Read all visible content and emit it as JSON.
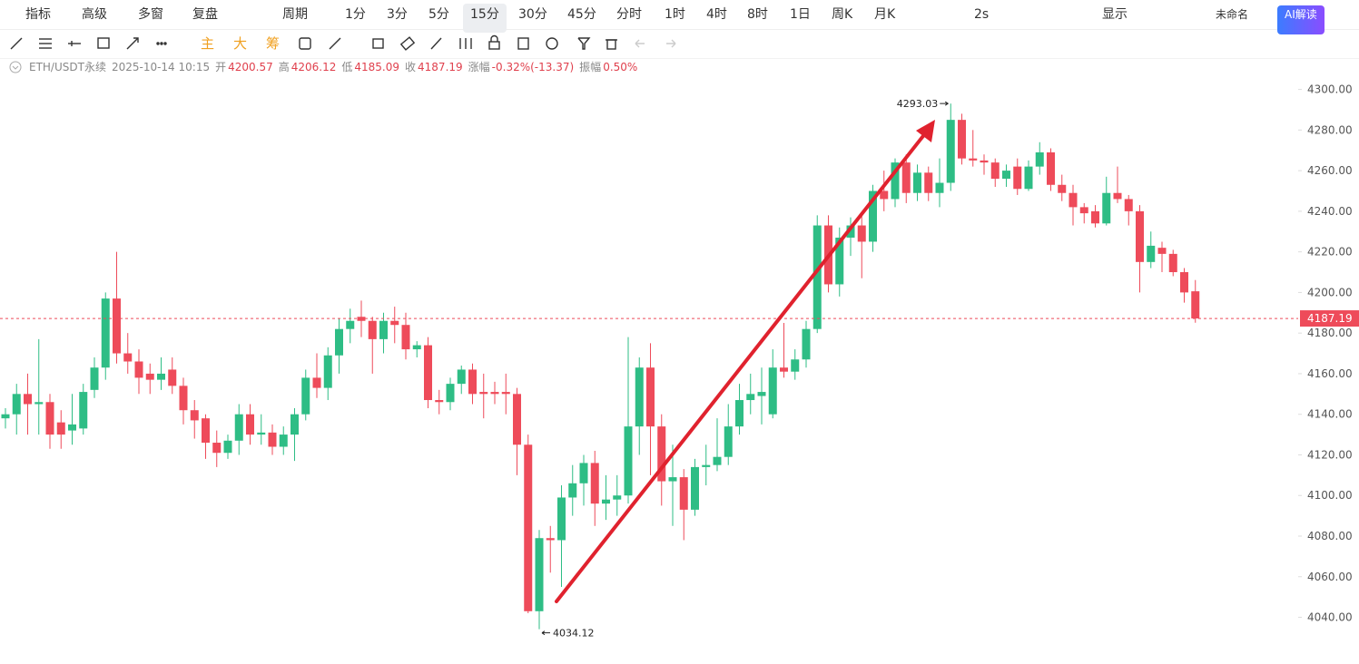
{
  "toolbar": {
    "left": [
      "指标",
      "高级",
      "多窗",
      "复盘",
      "周期"
    ],
    "periods": [
      "1分",
      "3分",
      "5分",
      "15分",
      "30分",
      "45分",
      "分时",
      "1时",
      "4时",
      "8时",
      "1日",
      "周K",
      "月K"
    ],
    "selected_period": "15分",
    "right": [
      "2s",
      "显示",
      "未命名",
      "AI解读"
    ]
  },
  "drawing_tools": {
    "labels": [
      "主",
      "大",
      "筹"
    ]
  },
  "info": {
    "symbol": "ETH/USDT永续",
    "time": "2025-10-14 10:15",
    "items": [
      {
        "label": "开",
        "value": "4200.57"
      },
      {
        "label": "高",
        "value": "4206.12"
      },
      {
        "label": "低",
        "value": "4185.09"
      },
      {
        "label": "收",
        "value": "4187.19"
      },
      {
        "label": "涨幅",
        "value": "-0.32%(-13.37)"
      },
      {
        "label": "振幅",
        "value": "0.50%"
      }
    ]
  },
  "chart_data": {
    "type": "candlestick",
    "up_color": "#2ebd85",
    "down_color": "#ee4b5a",
    "ylim": [
      4017,
      4315
    ],
    "yticks": [
      {
        "value": 4040,
        "label": "4040.00"
      },
      {
        "value": 4060,
        "label": "4060.00"
      },
      {
        "value": 4080,
        "label": "4080.00"
      },
      {
        "value": 4100,
        "label": "4100.00"
      },
      {
        "value": 4120,
        "label": "4120.00"
      },
      {
        "value": 4140,
        "label": "4140.00"
      },
      {
        "value": 4160,
        "label": "4160.00"
      },
      {
        "value": 4180,
        "label": "4180.00"
      },
      {
        "value": 4200,
        "label": "4200.00"
      },
      {
        "value": 4220,
        "label": "4220.00"
      },
      {
        "value": 4240,
        "label": "4240.00"
      },
      {
        "value": 4260,
        "label": "4260.00"
      },
      {
        "value": 4280,
        "label": "4280.00"
      },
      {
        "value": 4300,
        "label": "4300.00"
      }
    ],
    "open": [
      4138,
      4140,
      4150,
      4145,
      4146,
      4136,
      4132,
      4133,
      4152,
      4163,
      4197,
      4170,
      4166,
      4160,
      4157,
      4162,
      4154,
      4142,
      4138,
      4126,
      4121,
      4127,
      4140,
      4130,
      4131,
      4124,
      4130,
      4140,
      4158,
      4153,
      4169,
      4182,
      4188,
      4186,
      4177,
      4186,
      4184,
      4172,
      4174,
      4147,
      4146,
      4155,
      4162,
      4151,
      4151,
      4151,
      4150,
      4125,
      4043,
      4079,
      4078,
      4099,
      4106,
      4116,
      4096,
      4098,
      4100,
      4134,
      4163,
      4134,
      4107,
      4109,
      4093,
      4114,
      4115,
      4119,
      4134,
      4147,
      4149,
      4140,
      4163,
      4161,
      4167,
      4182,
      4233,
      4204,
      4227,
      4233,
      4225,
      4250,
      4246,
      4264,
      4249,
      4259,
      4249,
      4254,
      4285,
      4266,
      4265,
      4264,
      4256,
      4262,
      4251,
      4262,
      4269,
      4253,
      4249,
      4242,
      4240,
      4234,
      4249,
      4246,
      4240,
      4215,
      4222,
      4219,
      4210,
      4200.57
    ],
    "high": [
      4143,
      4155,
      4160,
      4177,
      4150,
      4142,
      4150,
      4155,
      4168,
      4200,
      4220,
      4180,
      4172,
      4165,
      4168,
      4168,
      4158,
      4147,
      4140,
      4132,
      4130,
      4145,
      4145,
      4140,
      4135,
      4134,
      4143,
      4162,
      4170,
      4173,
      4187,
      4192,
      4196,
      4188,
      4190,
      4193,
      4190,
      4176,
      4178,
      4152,
      4158,
      4164,
      4165,
      4160,
      4156,
      4160,
      4153,
      4130,
      4083,
      4085,
      4105,
      4115,
      4120,
      4122,
      4110,
      4110,
      4178,
      4168,
      4175,
      4140,
      4125,
      4113,
      4118,
      4125,
      4138,
      4145,
      4155,
      4160,
      4163,
      4172,
      4185,
      4172,
      4186,
      4238,
      4238,
      4232,
      4237,
      4238,
      4253,
      4260,
      4266,
      4268,
      4263,
      4262,
      4266,
      4293.03,
      4288,
      4280,
      4268,
      4266,
      4263,
      4266,
      4265,
      4274,
      4271,
      4258,
      4253,
      4244,
      4243,
      4257,
      4262,
      4248,
      4243,
      4230,
      4225,
      4221,
      4212,
      4206.12
    ],
    "low": [
      4133,
      4130,
      4130,
      4130,
      4123,
      4123,
      4125,
      4130,
      4148,
      4157,
      4165,
      4160,
      4150,
      4150,
      4152,
      4150,
      4135,
      4128,
      4118,
      4114,
      4118,
      4120,
      4125,
      4125,
      4120,
      4120,
      4117,
      4137,
      4148,
      4147,
      4160,
      4175,
      4178,
      4160,
      4170,
      4175,
      4167,
      4168,
      4143,
      4140,
      4142,
      4150,
      4145,
      4138,
      4145,
      4140,
      4110,
      4042,
      4034.12,
      4062,
      4055,
      4090,
      4095,
      4085,
      4088,
      4090,
      4096,
      4120,
      4110,
      4095,
      4085,
      4078,
      4090,
      4105,
      4112,
      4115,
      4130,
      4140,
      4135,
      4138,
      4158,
      4157,
      4163,
      4180,
      4200,
      4198,
      4218,
      4207,
      4220,
      4240,
      4242,
      4244,
      4245,
      4245,
      4242,
      4250,
      4263,
      4262,
      4258,
      4252,
      4252,
      4248,
      4250,
      4258,
      4250,
      4245,
      4233,
      4234,
      4232,
      4233,
      4244,
      4233,
      4200,
      4212,
      4210,
      4208,
      4195,
      4185.09
    ],
    "close": [
      4140,
      4150,
      4145,
      4146,
      4130,
      4130,
      4135,
      4151,
      4163,
      4197,
      4170,
      4166,
      4158,
      4157,
      4160,
      4154,
      4142,
      4137,
      4126,
      4121,
      4127,
      4140,
      4130,
      4131,
      4124,
      4130,
      4140,
      4158,
      4153,
      4169,
      4182,
      4186,
      4186,
      4177,
      4186,
      4184,
      4172,
      4174,
      4147,
      4146,
      4155,
      4162,
      4150,
      4150,
      4150,
      4150,
      4125,
      4043,
      4079,
      4078,
      4099,
      4106,
      4116,
      4096,
      4098,
      4100,
      4134,
      4163,
      4134,
      4107,
      4109,
      4093,
      4114,
      4115,
      4119,
      4134,
      4147,
      4150,
      4151,
      4163,
      4161,
      4167,
      4182,
      4233,
      4204,
      4227,
      4233,
      4225,
      4250,
      4246,
      4264,
      4249,
      4259,
      4249,
      4254,
      4285,
      4266,
      4265,
      4264,
      4256,
      4260,
      4251,
      4262,
      4269,
      4253,
      4249,
      4242,
      4239,
      4234,
      4249,
      4246,
      4240,
      4215,
      4223,
      4219,
      4210,
      4200,
      4187.19
    ]
  }
}
